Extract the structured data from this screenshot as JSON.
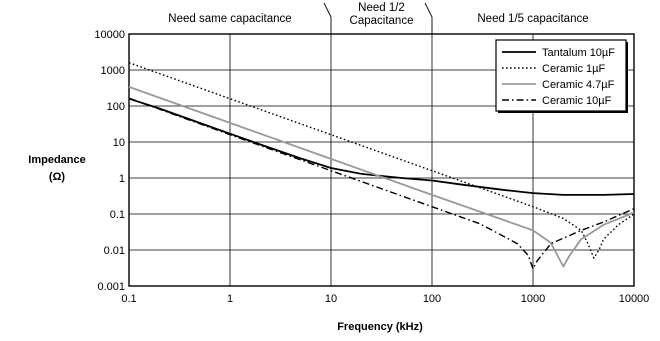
{
  "chart_data": {
    "type": "line",
    "xlabel": "Frequency (kHz)",
    "ylabel_line1": "Impedance",
    "ylabel_line2": "(Ω)",
    "x_scale": "log",
    "y_scale": "log",
    "xlim": [
      0.1,
      10000
    ],
    "ylim": [
      0.001,
      10000
    ],
    "x_ticks": [
      0.1,
      1,
      10,
      100,
      1000,
      10000
    ],
    "x_tick_labels": [
      "0.1",
      "1",
      "10",
      "100",
      "1000",
      "10000"
    ],
    "y_ticks": [
      0.001,
      0.01,
      0.1,
      1,
      10,
      100,
      1000,
      10000
    ],
    "y_tick_labels": [
      "0.001",
      "0.01",
      "0.1",
      "1",
      "10",
      "100",
      "1000",
      "10000"
    ],
    "grid": true,
    "legend_position": "top-right",
    "regions": [
      {
        "lines": [
          "Need same capacitance"
        ]
      },
      {
        "lines": [
          "Need 1/2",
          "Capacitance"
        ]
      },
      {
        "lines": [
          "Need 1/5 capacitance"
        ]
      }
    ],
    "region_dividers_x": [
      10,
      100
    ],
    "series": [
      {
        "name": "Tantalum 10µF",
        "color": "#000000",
        "dash": "solid",
        "points": [
          [
            0.1,
            160
          ],
          [
            0.2,
            85
          ],
          [
            0.5,
            34
          ],
          [
            1,
            17
          ],
          [
            2,
            8.5
          ],
          [
            5,
            3.5
          ],
          [
            10,
            1.9
          ],
          [
            20,
            1.3
          ],
          [
            50,
            1.0
          ],
          [
            100,
            0.85
          ],
          [
            200,
            0.65
          ],
          [
            500,
            0.47
          ],
          [
            1000,
            0.38
          ],
          [
            2000,
            0.34
          ],
          [
            5000,
            0.34
          ],
          [
            10000,
            0.36
          ]
        ]
      },
      {
        "name": "Ceramic 1µF",
        "color": "#000000",
        "dash": "dotted",
        "points": [
          [
            0.1,
            1600
          ],
          [
            1,
            160
          ],
          [
            10,
            16
          ],
          [
            100,
            1.6
          ],
          [
            500,
            0.32
          ],
          [
            1000,
            0.16
          ],
          [
            2000,
            0.075
          ],
          [
            3000,
            0.035
          ],
          [
            3500,
            0.015
          ],
          [
            4000,
            0.006
          ],
          [
            4500,
            0.01
          ],
          [
            5000,
            0.02
          ],
          [
            7000,
            0.05
          ],
          [
            10000,
            0.1
          ]
        ]
      },
      {
        "name": "Ceramic 4.7µF",
        "color": "#999999",
        "dash": "solid",
        "points": [
          [
            0.1,
            340
          ],
          [
            1,
            34
          ],
          [
            10,
            3.4
          ],
          [
            100,
            0.34
          ],
          [
            500,
            0.07
          ],
          [
            1000,
            0.035
          ],
          [
            1500,
            0.016
          ],
          [
            1800,
            0.006
          ],
          [
            2000,
            0.0035
          ],
          [
            2300,
            0.007
          ],
          [
            3000,
            0.02
          ],
          [
            5000,
            0.05
          ],
          [
            10000,
            0.11
          ]
        ]
      },
      {
        "name": "Ceramic 10µF",
        "color": "#000000",
        "dash": "dashdot",
        "points": [
          [
            0.1,
            165
          ],
          [
            1,
            16
          ],
          [
            10,
            1.6
          ],
          [
            100,
            0.16
          ],
          [
            300,
            0.053
          ],
          [
            700,
            0.015
          ],
          [
            900,
            0.007
          ],
          [
            1000,
            0.003
          ],
          [
            1100,
            0.005
          ],
          [
            1500,
            0.015
          ],
          [
            3000,
            0.035
          ],
          [
            5000,
            0.06
          ],
          [
            10000,
            0.14
          ]
        ]
      }
    ]
  }
}
